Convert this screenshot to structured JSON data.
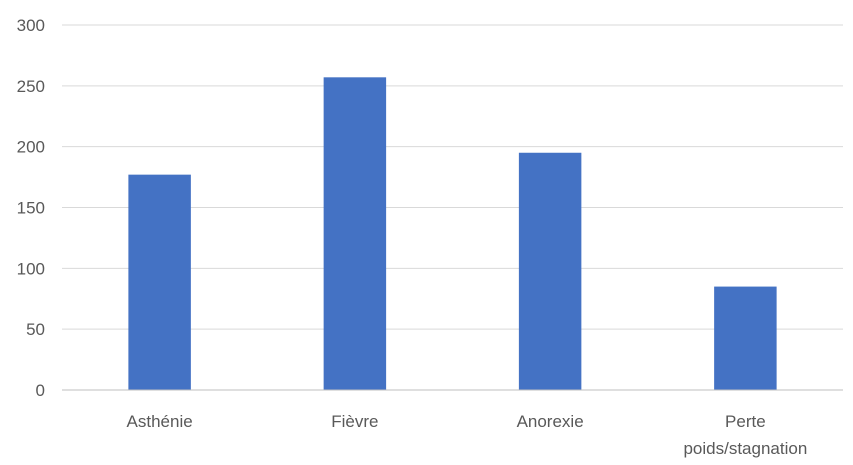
{
  "chart_data": {
    "type": "bar",
    "title": "",
    "xlabel": "",
    "ylabel": "",
    "categories": [
      "Asthénie",
      "Fièvre",
      "Anorexie",
      "Perte poids/stagnation"
    ],
    "category_lines": [
      [
        "Asthénie"
      ],
      [
        "Fièvre"
      ],
      [
        "Anorexie"
      ],
      [
        "Perte",
        "poids/stagnation"
      ]
    ],
    "values": [
      177,
      257,
      195,
      85
    ],
    "ylim": [
      0,
      300
    ],
    "yticks": [
      0,
      50,
      100,
      150,
      200,
      250,
      300
    ],
    "grid": true,
    "legend": "none",
    "bar_color": "#4472c4"
  }
}
